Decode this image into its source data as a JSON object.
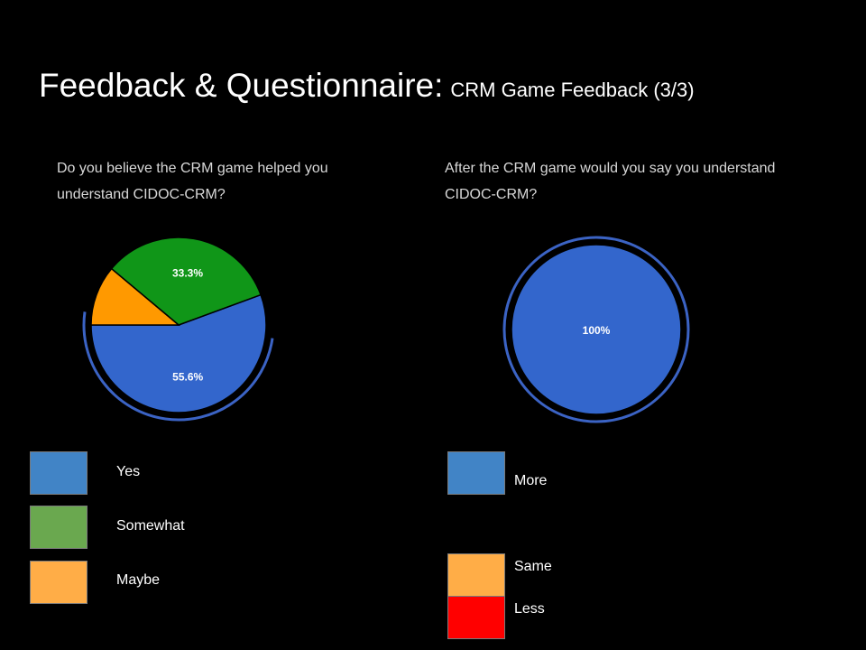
{
  "slide": {
    "title": "Feedback & Questionnaire:",
    "subtitle": "CRM Game Feedback (3/3)"
  },
  "chart_data": [
    {
      "type": "pie",
      "title": "Do you believe the CRM game helped you understand CIDOC-CRM?",
      "slices": [
        {
          "label": "Yes",
          "value": 55.6,
          "data_label": "55.6%",
          "color": "#3366cc"
        },
        {
          "label": "Somewhat",
          "value": 33.3,
          "data_label": "33.3%",
          "color": "#109618"
        },
        {
          "label": "Maybe",
          "value": 11.1,
          "data_label": "",
          "color": "#ff9900"
        }
      ],
      "legend": [
        {
          "label": "Yes",
          "color": "#4184c6"
        },
        {
          "label": "Somewhat",
          "color": "#6aa84f"
        },
        {
          "label": "Maybe",
          "color": "#ffad47"
        }
      ]
    },
    {
      "type": "pie",
      "title": "After the CRM game would you say you understand CIDOC-CRM?",
      "slices": [
        {
          "label": "More",
          "value": 100,
          "data_label": "100%",
          "color": "#3366cc"
        }
      ],
      "legend": [
        {
          "label": "More",
          "color": "#4184c6"
        },
        {
          "label": "Same",
          "color": "#ffad47"
        },
        {
          "label": "Less",
          "color": "#ff0000"
        }
      ]
    }
  ]
}
